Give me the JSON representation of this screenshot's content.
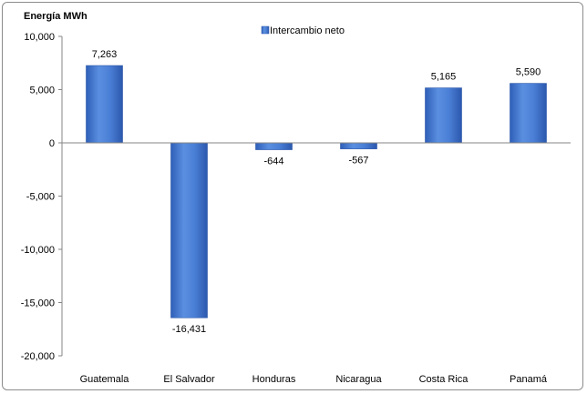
{
  "chart_data": {
    "type": "bar",
    "ylabel": "Energía MWh",
    "categories": [
      "Guatemala",
      "El Salvador",
      "Honduras",
      "Nicaragua",
      "Costa Rica",
      "Panamá"
    ],
    "series": [
      {
        "name": "Intercambio neto",
        "values": [
          7263,
          -16431,
          -644,
          -567,
          5165,
          5590
        ]
      }
    ],
    "data_labels": [
      "7,263",
      "-16,431",
      "-644",
      "-567",
      "5,165",
      "5,590"
    ],
    "ylim": [
      -20000,
      10000
    ],
    "yticks": [
      10000,
      5000,
      0,
      -5000,
      -10000,
      -15000,
      -20000
    ],
    "ytick_labels": [
      "10,000",
      "5,000",
      "0",
      "-5,000",
      "-10,000",
      "-15,000",
      "-20,000"
    ],
    "legend_position": "top",
    "grid": false,
    "bar_color": "#4a7fd6",
    "bar_edge_color": "#2a56a8"
  }
}
